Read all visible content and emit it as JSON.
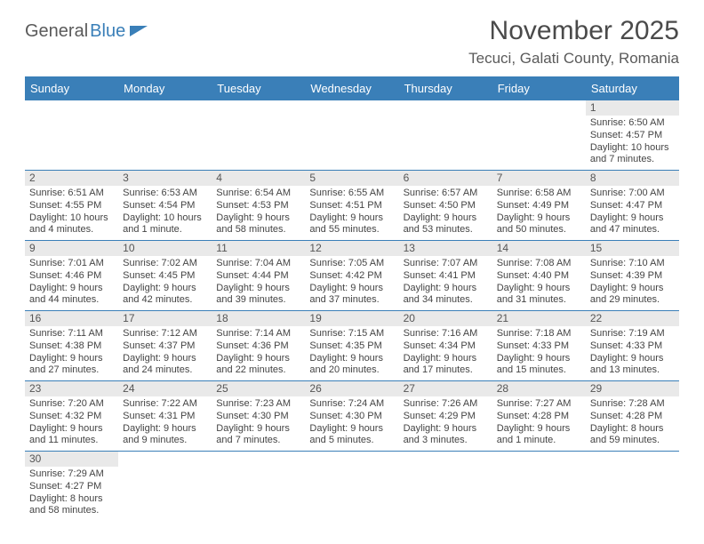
{
  "brand": {
    "general": "General",
    "blue": "Blue"
  },
  "title": "November 2025",
  "location": "Tecuci, Galati County, Romania",
  "colors": {
    "headerBg": "#3a7fb8",
    "headerText": "#ffffff",
    "dayNumBg": "#e9e9e9",
    "rowBorder": "#3a7fb8",
    "bodyText": "#444444"
  },
  "dayHeaders": [
    "Sunday",
    "Monday",
    "Tuesday",
    "Wednesday",
    "Thursday",
    "Friday",
    "Saturday"
  ],
  "weeks": [
    [
      null,
      null,
      null,
      null,
      null,
      null,
      {
        "n": "1",
        "sunrise": "6:50 AM",
        "sunset": "4:57 PM",
        "daylight1": "Daylight: 10 hours",
        "daylight2": "and 7 minutes."
      }
    ],
    [
      {
        "n": "2",
        "sunrise": "6:51 AM",
        "sunset": "4:55 PM",
        "daylight1": "Daylight: 10 hours",
        "daylight2": "and 4 minutes."
      },
      {
        "n": "3",
        "sunrise": "6:53 AM",
        "sunset": "4:54 PM",
        "daylight1": "Daylight: 10 hours",
        "daylight2": "and 1 minute."
      },
      {
        "n": "4",
        "sunrise": "6:54 AM",
        "sunset": "4:53 PM",
        "daylight1": "Daylight: 9 hours",
        "daylight2": "and 58 minutes."
      },
      {
        "n": "5",
        "sunrise": "6:55 AM",
        "sunset": "4:51 PM",
        "daylight1": "Daylight: 9 hours",
        "daylight2": "and 55 minutes."
      },
      {
        "n": "6",
        "sunrise": "6:57 AM",
        "sunset": "4:50 PM",
        "daylight1": "Daylight: 9 hours",
        "daylight2": "and 53 minutes."
      },
      {
        "n": "7",
        "sunrise": "6:58 AM",
        "sunset": "4:49 PM",
        "daylight1": "Daylight: 9 hours",
        "daylight2": "and 50 minutes."
      },
      {
        "n": "8",
        "sunrise": "7:00 AM",
        "sunset": "4:47 PM",
        "daylight1": "Daylight: 9 hours",
        "daylight2": "and 47 minutes."
      }
    ],
    [
      {
        "n": "9",
        "sunrise": "7:01 AM",
        "sunset": "4:46 PM",
        "daylight1": "Daylight: 9 hours",
        "daylight2": "and 44 minutes."
      },
      {
        "n": "10",
        "sunrise": "7:02 AM",
        "sunset": "4:45 PM",
        "daylight1": "Daylight: 9 hours",
        "daylight2": "and 42 minutes."
      },
      {
        "n": "11",
        "sunrise": "7:04 AM",
        "sunset": "4:44 PM",
        "daylight1": "Daylight: 9 hours",
        "daylight2": "and 39 minutes."
      },
      {
        "n": "12",
        "sunrise": "7:05 AM",
        "sunset": "4:42 PM",
        "daylight1": "Daylight: 9 hours",
        "daylight2": "and 37 minutes."
      },
      {
        "n": "13",
        "sunrise": "7:07 AM",
        "sunset": "4:41 PM",
        "daylight1": "Daylight: 9 hours",
        "daylight2": "and 34 minutes."
      },
      {
        "n": "14",
        "sunrise": "7:08 AM",
        "sunset": "4:40 PM",
        "daylight1": "Daylight: 9 hours",
        "daylight2": "and 31 minutes."
      },
      {
        "n": "15",
        "sunrise": "7:10 AM",
        "sunset": "4:39 PM",
        "daylight1": "Daylight: 9 hours",
        "daylight2": "and 29 minutes."
      }
    ],
    [
      {
        "n": "16",
        "sunrise": "7:11 AM",
        "sunset": "4:38 PM",
        "daylight1": "Daylight: 9 hours",
        "daylight2": "and 27 minutes."
      },
      {
        "n": "17",
        "sunrise": "7:12 AM",
        "sunset": "4:37 PM",
        "daylight1": "Daylight: 9 hours",
        "daylight2": "and 24 minutes."
      },
      {
        "n": "18",
        "sunrise": "7:14 AM",
        "sunset": "4:36 PM",
        "daylight1": "Daylight: 9 hours",
        "daylight2": "and 22 minutes."
      },
      {
        "n": "19",
        "sunrise": "7:15 AM",
        "sunset": "4:35 PM",
        "daylight1": "Daylight: 9 hours",
        "daylight2": "and 20 minutes."
      },
      {
        "n": "20",
        "sunrise": "7:16 AM",
        "sunset": "4:34 PM",
        "daylight1": "Daylight: 9 hours",
        "daylight2": "and 17 minutes."
      },
      {
        "n": "21",
        "sunrise": "7:18 AM",
        "sunset": "4:33 PM",
        "daylight1": "Daylight: 9 hours",
        "daylight2": "and 15 minutes."
      },
      {
        "n": "22",
        "sunrise": "7:19 AM",
        "sunset": "4:33 PM",
        "daylight1": "Daylight: 9 hours",
        "daylight2": "and 13 minutes."
      }
    ],
    [
      {
        "n": "23",
        "sunrise": "7:20 AM",
        "sunset": "4:32 PM",
        "daylight1": "Daylight: 9 hours",
        "daylight2": "and 11 minutes."
      },
      {
        "n": "24",
        "sunrise": "7:22 AM",
        "sunset": "4:31 PM",
        "daylight1": "Daylight: 9 hours",
        "daylight2": "and 9 minutes."
      },
      {
        "n": "25",
        "sunrise": "7:23 AM",
        "sunset": "4:30 PM",
        "daylight1": "Daylight: 9 hours",
        "daylight2": "and 7 minutes."
      },
      {
        "n": "26",
        "sunrise": "7:24 AM",
        "sunset": "4:30 PM",
        "daylight1": "Daylight: 9 hours",
        "daylight2": "and 5 minutes."
      },
      {
        "n": "27",
        "sunrise": "7:26 AM",
        "sunset": "4:29 PM",
        "daylight1": "Daylight: 9 hours",
        "daylight2": "and 3 minutes."
      },
      {
        "n": "28",
        "sunrise": "7:27 AM",
        "sunset": "4:28 PM",
        "daylight1": "Daylight: 9 hours",
        "daylight2": "and 1 minute."
      },
      {
        "n": "29",
        "sunrise": "7:28 AM",
        "sunset": "4:28 PM",
        "daylight1": "Daylight: 8 hours",
        "daylight2": "and 59 minutes."
      }
    ],
    [
      {
        "n": "30",
        "sunrise": "7:29 AM",
        "sunset": "4:27 PM",
        "daylight1": "Daylight: 8 hours",
        "daylight2": "and 58 minutes."
      },
      null,
      null,
      null,
      null,
      null,
      null
    ]
  ],
  "labels": {
    "sunrisePrefix": "Sunrise: ",
    "sunsetPrefix": "Sunset: "
  }
}
